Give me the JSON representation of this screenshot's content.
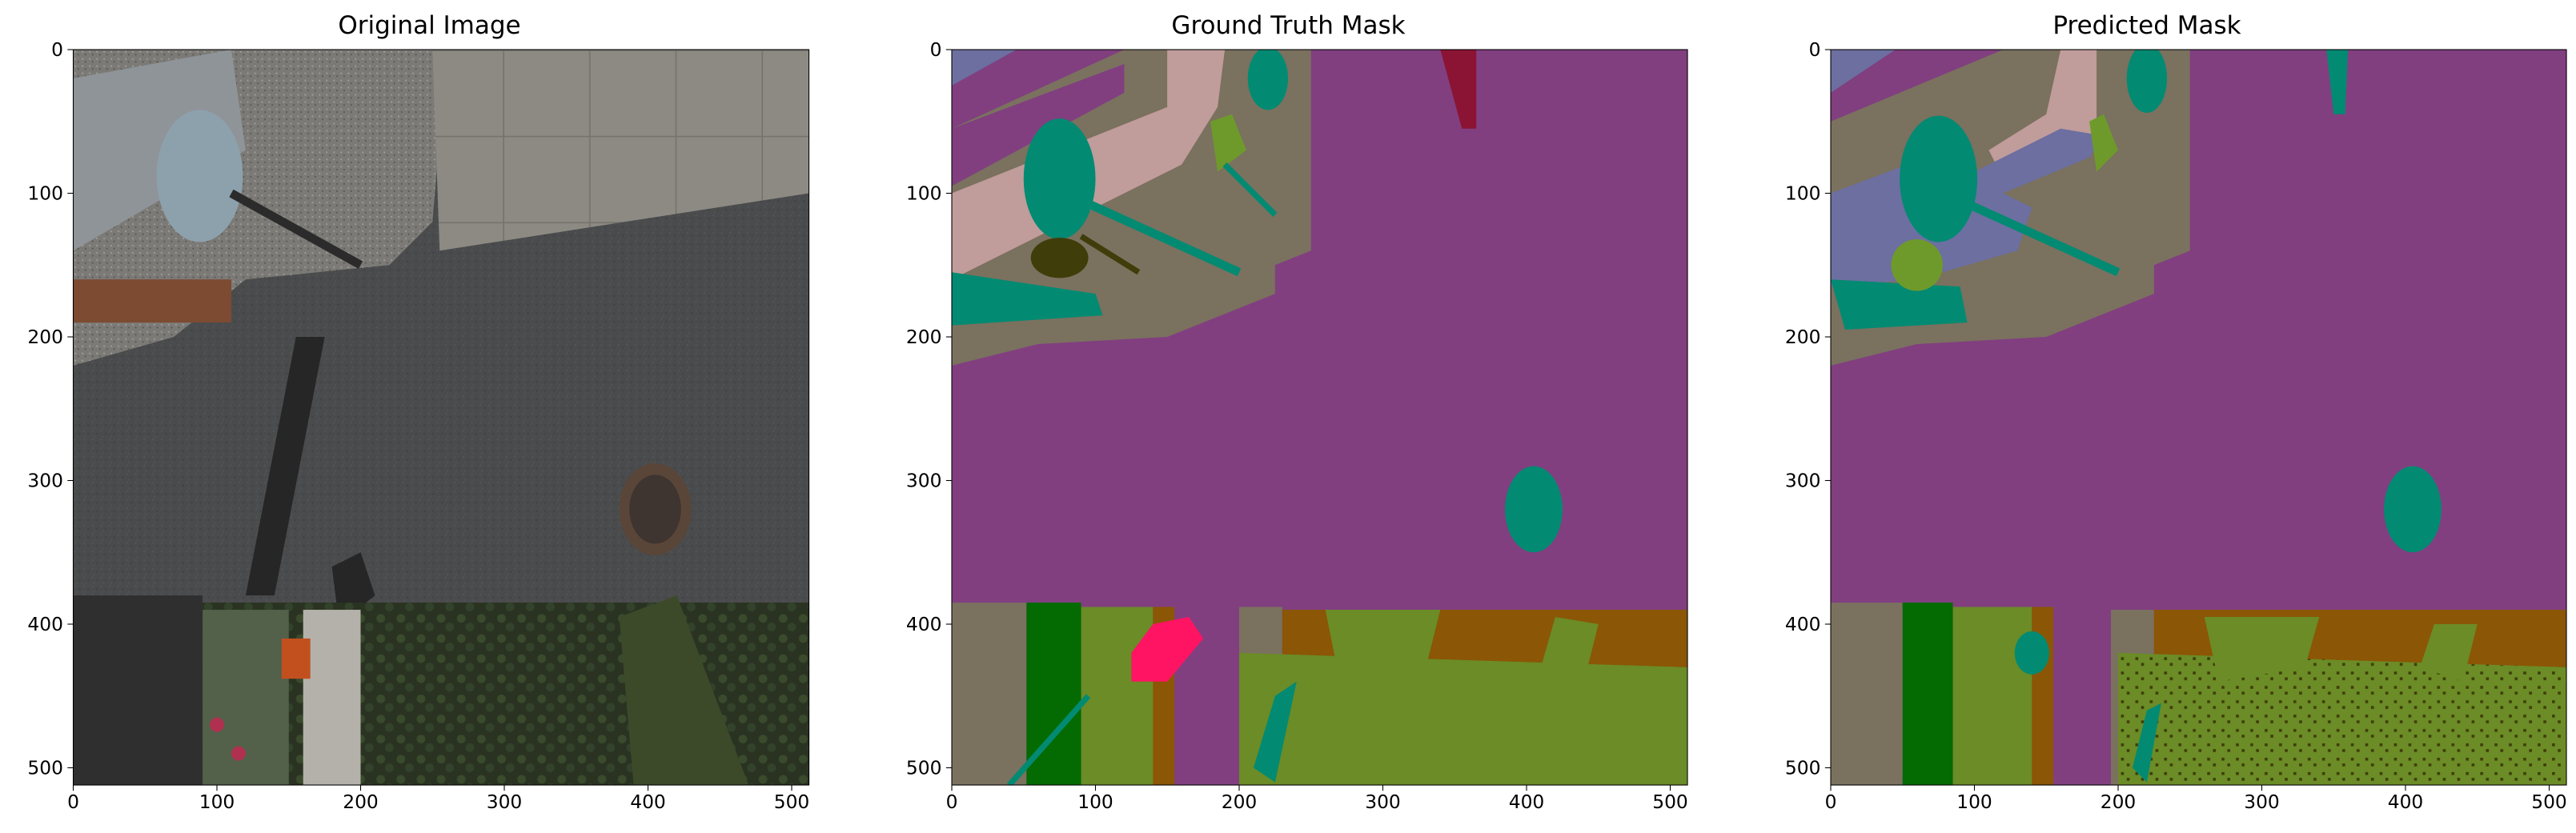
{
  "figure": {
    "panels": [
      {
        "id": "original",
        "title": "Original Image"
      },
      {
        "id": "ground_truth",
        "title": "Ground Truth Mask"
      },
      {
        "id": "predicted",
        "title": "Predicted Mask"
      }
    ]
  },
  "chart_data": [
    {
      "type": "image",
      "title": "Original Image",
      "xlabel": "",
      "ylabel": "",
      "xlim": [
        0,
        512
      ],
      "ylim": [
        512,
        0
      ],
      "x_ticks": [
        0,
        100,
        200,
        300,
        400,
        500
      ],
      "y_ticks": [
        0,
        100,
        200,
        300,
        400,
        500
      ],
      "grid": false
    },
    {
      "type": "image",
      "title": "Ground Truth Mask",
      "xlabel": "",
      "ylabel": "",
      "xlim": [
        0,
        512
      ],
      "ylim": [
        512,
        0
      ],
      "x_ticks": [
        0,
        100,
        200,
        300,
        400,
        500
      ],
      "y_ticks": [
        0,
        100,
        200,
        300,
        400,
        500
      ],
      "grid": false
    },
    {
      "type": "image",
      "title": "Predicted Mask",
      "xlabel": "",
      "ylabel": "",
      "xlim": [
        0,
        512
      ],
      "ylim": [
        512,
        0
      ],
      "x_ticks": [
        0,
        100,
        200,
        300,
        400,
        500
      ],
      "y_ticks": [
        0,
        100,
        200,
        300,
        400,
        500
      ],
      "grid": false
    }
  ],
  "colors": {
    "road_purple": "#813f80",
    "ground_taupe": "#7a715f",
    "teal": "#038a72",
    "pink_wall": "#c09c9a",
    "periwinkle": "#6c6fa0",
    "olive_green": "#6b8c26",
    "dark_green": "#036b02",
    "brown": "#8b5606",
    "crimson": "#8b1435",
    "hot_pink": "#ff1463",
    "dark_olive": "#3f3d09",
    "yellow_green": "#6e9a2b"
  }
}
